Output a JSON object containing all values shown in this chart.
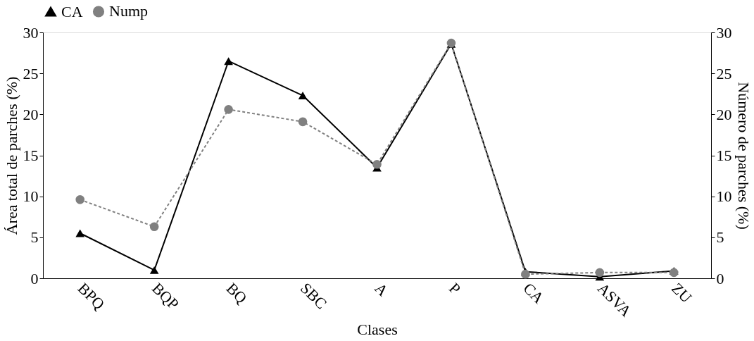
{
  "chart_data": {
    "type": "line",
    "xlabel": "Clases",
    "ylabel": "Área total de parches (%)",
    "y2label": "Número de parches (%)",
    "categories": [
      "BPQ",
      "BQP",
      "BQ",
      "SBC",
      "A",
      "P",
      "CA",
      "ASVA",
      "ZU"
    ],
    "series": [
      {
        "name": "CA",
        "color": "#000000",
        "marker": "triangle",
        "line_style": "solid",
        "values": [
          5.5,
          1.0,
          26.5,
          22.3,
          13.5,
          28.6,
          0.8,
          0.2,
          0.9
        ]
      },
      {
        "name": "Nump",
        "color": "#808080",
        "marker": "circle",
        "line_style": "dashed",
        "axis": "y2",
        "values": [
          9.6,
          6.3,
          20.6,
          19.1,
          13.9,
          28.7,
          0.5,
          0.7,
          0.7
        ]
      }
    ],
    "ylim": [
      0,
      30
    ],
    "yticks": [
      0,
      5,
      10,
      15,
      20,
      25,
      30
    ],
    "y2lim": [
      0,
      30
    ],
    "y2ticks": [
      0,
      5,
      10,
      15,
      20,
      25,
      30
    ],
    "grid": false,
    "legend": "top"
  }
}
